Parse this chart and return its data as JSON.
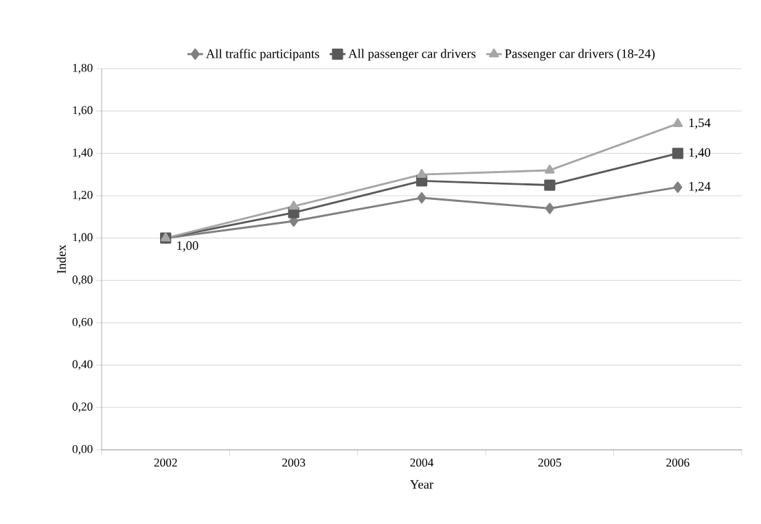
{
  "chart_data": {
    "type": "line",
    "xlabel": "Year",
    "ylabel": "Index",
    "categories": [
      "2002",
      "2003",
      "2004",
      "2005",
      "2006"
    ],
    "series": [
      {
        "name": "All traffic participants",
        "color": "#808080",
        "marker": "diamond",
        "values": [
          1.0,
          1.08,
          1.19,
          1.14,
          1.24
        ],
        "value_labels": [
          "1,00",
          null,
          null,
          null,
          "1,24"
        ]
      },
      {
        "name": "All passenger car drivers",
        "color": "#595959",
        "marker": "square",
        "values": [
          1.0,
          1.12,
          1.27,
          1.25,
          1.4
        ],
        "value_labels": [
          null,
          null,
          null,
          null,
          "1,40"
        ]
      },
      {
        "name": "Passenger car drivers (18-24)",
        "color": "#a6a6a6",
        "marker": "triangle",
        "values": [
          1.0,
          1.15,
          1.3,
          1.32,
          1.54
        ],
        "value_labels": [
          null,
          null,
          null,
          null,
          "1,54"
        ]
      }
    ],
    "ylim": [
      0,
      1.8
    ],
    "yticks": [
      {
        "value": 0,
        "label": "0,00"
      },
      {
        "value": 0.2,
        "label": "0,20"
      },
      {
        "value": 0.4,
        "label": "0,40"
      },
      {
        "value": 0.6,
        "label": "0,60"
      },
      {
        "value": 0.8,
        "label": "0,80"
      },
      {
        "value": 1.0,
        "label": "1,00"
      },
      {
        "value": 1.2,
        "label": "1,20"
      },
      {
        "value": 1.4,
        "label": "1,40"
      },
      {
        "value": 1.6,
        "label": "1,60"
      },
      {
        "value": 1.8,
        "label": "1,80"
      }
    ],
    "grid": "y",
    "legend": "top",
    "line_style": "solid"
  }
}
